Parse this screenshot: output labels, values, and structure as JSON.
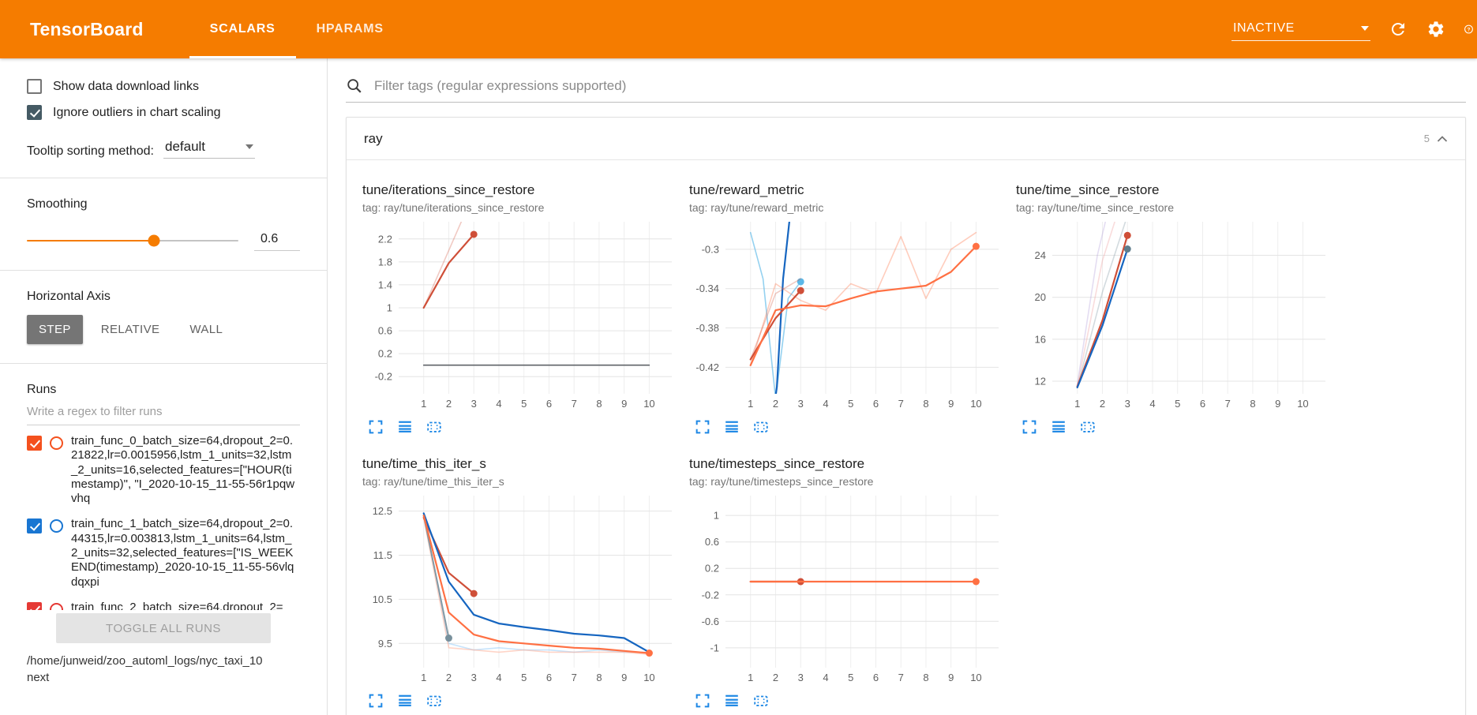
{
  "header": {
    "brand": "TensorBoard",
    "tabs": [
      {
        "label": "SCALARS",
        "active": true
      },
      {
        "label": "HPARAMS",
        "active": false
      }
    ],
    "status_select": "INACTIVE",
    "colors": {
      "bar": "#f57c00"
    }
  },
  "sidebar": {
    "checkboxes": [
      {
        "label": "Show data download links",
        "checked": false
      },
      {
        "label": "Ignore outliers in chart scaling",
        "checked": true
      }
    ],
    "tooltip_sorting": {
      "label": "Tooltip sorting method:",
      "value": "default"
    },
    "smoothing": {
      "label": "Smoothing",
      "value": "0.6",
      "percent": 60
    },
    "horizontal_axis": {
      "label": "Horizontal Axis",
      "options": [
        "STEP",
        "RELATIVE",
        "WALL"
      ],
      "selected": "STEP"
    },
    "runs": {
      "label": "Runs",
      "filter_placeholder": "Write a regex to filter runs",
      "items": [
        {
          "name": "train_func_0_batch_size=64,dropout_2=0.21822,lr=0.0015956,lstm_1_units=32,lstm_2_units=16,selected_features=[\"HOUR(timestamp)\", \"I_2020-10-15_11-55-56r1pqwvhq",
          "checked": true,
          "color": "#f4511e"
        },
        {
          "name": "train_func_1_batch_size=64,dropout_2=0.44315,lr=0.003813,lstm_1_units=64,lstm_2_units=32,selected_features=[\"IS_WEEKEND(timestamp)_2020-10-15_11-55-56vlqdqxpi",
          "checked": true,
          "color": "#1976d2"
        },
        {
          "name": "train_func_2_batch_size=64,dropout_2=",
          "checked": true,
          "color": "#e53935"
        }
      ],
      "toggle_all_label": "TOGGLE ALL RUNS",
      "log_path": "/home/junweid/zoo_automl_logs/nyc_taxi_10next"
    }
  },
  "main": {
    "filter_placeholder": "Filter tags (regular expressions supported)",
    "category": {
      "name": "ray",
      "count": "5"
    }
  },
  "chart_data": [
    {
      "type": "line",
      "title": "tune/iterations_since_restore",
      "tag": "tag: ray/tune/iterations_since_restore",
      "xlim": [
        0,
        10.9
      ],
      "ylim": [
        -0.5,
        2.5
      ],
      "xticks": [
        1,
        2,
        3,
        4,
        5,
        6,
        7,
        8,
        9,
        10
      ],
      "yticks": [
        -0.2,
        0.2,
        0.6,
        1,
        1.4,
        1.8,
        2.2
      ],
      "series": [
        {
          "name": "train_func_0 raw",
          "color": "#cf4f38",
          "opacity": 0.3,
          "width": 1.6,
          "points": [
            [
              1,
              1
            ],
            [
              2,
              2
            ],
            [
              3,
              3
            ]
          ]
        },
        {
          "name": "train_func_0",
          "color": "#cf4f38",
          "opacity": 1,
          "width": 2.2,
          "points": [
            [
              1,
              1
            ],
            [
              2,
              1.78
            ],
            [
              3,
              2.28
            ]
          ],
          "end_dot": true
        },
        {
          "name": "constant run",
          "color": "#5f6368",
          "opacity": 1,
          "width": 1.6,
          "points": [
            [
              1,
              0
            ],
            [
              10,
              0
            ]
          ]
        }
      ]
    },
    {
      "type": "line",
      "title": "tune/reward_metric",
      "tag": "tag: ray/tune/reward_metric",
      "xlim": [
        0,
        10.9
      ],
      "ylim": [
        -0.447,
        -0.272
      ],
      "xticks": [
        1,
        2,
        3,
        4,
        5,
        6,
        7,
        8,
        9,
        10
      ],
      "yticks": [
        -0.42,
        -0.38,
        -0.34,
        -0.3
      ],
      "series": [
        {
          "name": "train_func_1 raw",
          "color": "#5bb8e8",
          "opacity": 0.65,
          "width": 1.6,
          "points": [
            [
              1,
              -0.283
            ],
            [
              1.5,
              -0.33
            ],
            [
              2,
              -0.452
            ],
            [
              2.5,
              -0.35
            ],
            [
              3,
              -0.333
            ]
          ],
          "end_dot": true
        },
        {
          "name": "train_func_1",
          "color": "#1565c0",
          "opacity": 1,
          "width": 2.2,
          "points": [
            [
              1.6,
              -0.52
            ],
            [
              2.05,
              -0.44
            ],
            [
              2.3,
              -0.33
            ],
            [
              2.55,
              -0.272
            ],
            [
              2.8,
              -0.25
            ]
          ]
        },
        {
          "name": "train_func_2 raw",
          "color": "#ff7043",
          "opacity": 0.35,
          "width": 1.6,
          "points": [
            [
              1,
              -0.418
            ],
            [
              2,
              -0.335
            ],
            [
              3,
              -0.352
            ],
            [
              4,
              -0.362
            ],
            [
              5,
              -0.335
            ],
            [
              6,
              -0.345
            ],
            [
              7,
              -0.287
            ],
            [
              8,
              -0.35
            ],
            [
              9,
              -0.3
            ],
            [
              10,
              -0.283
            ]
          ]
        },
        {
          "name": "train_func_0 raw",
          "color": "#cf4f38",
          "opacity": 0.3,
          "width": 1.6,
          "points": [
            [
              1,
              -0.412
            ],
            [
              2,
              -0.345
            ],
            [
              3,
              -0.33
            ]
          ]
        },
        {
          "name": "train_func_0",
          "color": "#cf4f38",
          "opacity": 1,
          "width": 2.2,
          "points": [
            [
              1,
              -0.412
            ],
            [
              2,
              -0.37
            ],
            [
              3,
              -0.342
            ]
          ],
          "end_dot": true
        },
        {
          "name": "train_func_2",
          "color": "#ff7043",
          "opacity": 1,
          "width": 2.2,
          "points": [
            [
              1,
              -0.418
            ],
            [
              2,
              -0.362
            ],
            [
              3,
              -0.357
            ],
            [
              4,
              -0.358
            ],
            [
              5,
              -0.35
            ],
            [
              6,
              -0.343
            ],
            [
              7,
              -0.34
            ],
            [
              8,
              -0.337
            ],
            [
              9,
              -0.323
            ],
            [
              10,
              -0.297
            ]
          ],
          "end_dot": true
        }
      ]
    },
    {
      "type": "line",
      "title": "tune/time_since_restore",
      "tag": "tag: ray/tune/time_since_restore",
      "xlim": [
        0,
        10.9
      ],
      "ylim": [
        10.8,
        27.2
      ],
      "xticks": [
        1,
        2,
        3,
        4,
        5,
        6,
        7,
        8,
        9,
        10
      ],
      "yticks": [
        12,
        16,
        20,
        24
      ],
      "series": [
        {
          "name": "raw a",
          "color": "#b39ddb",
          "opacity": 0.35,
          "width": 1.6,
          "points": [
            [
              1,
              11.7
            ],
            [
              1.8,
              24
            ],
            [
              2.2,
              28
            ]
          ]
        },
        {
          "name": "raw b",
          "color": "#ef9a9a",
          "opacity": 0.35,
          "width": 1.6,
          "points": [
            [
              1,
              11.5
            ],
            [
              2,
              23.5
            ],
            [
              2.6,
              28
            ]
          ]
        },
        {
          "name": "raw c",
          "color": "#90a4ae",
          "opacity": 0.4,
          "width": 1.6,
          "points": [
            [
              1,
              11.4
            ],
            [
              2,
              20.5
            ],
            [
              3,
              27.8
            ]
          ]
        },
        {
          "name": "train_func_0",
          "color": "#cf4f38",
          "opacity": 1,
          "width": 2.2,
          "points": [
            [
              1,
              11.5
            ],
            [
              2,
              17.8
            ],
            [
              3,
              25.9
            ]
          ],
          "end_dot": true
        },
        {
          "name": "train_func_1",
          "color": "#1565c0",
          "opacity": 1,
          "width": 2.2,
          "points": [
            [
              1,
              11.4
            ],
            [
              2,
              17.3
            ],
            [
              3,
              24.6
            ]
          ],
          "end_dot": true,
          "dot_color": "#5f7d8c"
        }
      ]
    },
    {
      "type": "line",
      "title": "tune/time_this_iter_s",
      "tag": "tag: ray/tune/time_this_iter_s",
      "xlim": [
        0,
        10.9
      ],
      "ylim": [
        8.95,
        12.85
      ],
      "xticks": [
        1,
        2,
        3,
        4,
        5,
        6,
        7,
        8,
        9,
        10
      ],
      "yticks": [
        9.5,
        10.5,
        11.5,
        12.5
      ],
      "series": [
        {
          "name": "train_func_1 raw",
          "color": "#90caf9",
          "opacity": 0.5,
          "width": 1.6,
          "points": [
            [
              1,
              12.45
            ],
            [
              2,
              9.5
            ],
            [
              3,
              9.35
            ],
            [
              4,
              9.4
            ],
            [
              5,
              9.35
            ],
            [
              6,
              9.35
            ],
            [
              7,
              9.3
            ],
            [
              8,
              9.35
            ],
            [
              9,
              9.3
            ],
            [
              10,
              9.3
            ]
          ]
        },
        {
          "name": "train_func_2 raw",
          "color": "#ffab91",
          "opacity": 0.5,
          "width": 1.6,
          "points": [
            [
              1,
              12.35
            ],
            [
              2,
              9.4
            ],
            [
              3,
              9.35
            ],
            [
              4,
              9.3
            ],
            [
              5,
              9.35
            ],
            [
              6,
              9.3
            ],
            [
              7,
              9.3
            ],
            [
              8,
              9.3
            ],
            [
              9,
              9.3
            ],
            [
              10,
              9.25
            ]
          ]
        },
        {
          "name": "short run",
          "color": "#78909c",
          "opacity": 0.9,
          "width": 2,
          "points": [
            [
              1,
              12.4
            ],
            [
              2,
              9.62
            ]
          ],
          "end_dot": true
        },
        {
          "name": "train_func_0",
          "color": "#cf4f38",
          "opacity": 1,
          "width": 2.2,
          "points": [
            [
              1,
              12.35
            ],
            [
              2,
              11.1
            ],
            [
              3,
              10.63
            ]
          ],
          "end_dot": true
        },
        {
          "name": "train_func_1",
          "color": "#1565c0",
          "opacity": 1,
          "width": 2.2,
          "points": [
            [
              1,
              12.45
            ],
            [
              2,
              10.9
            ],
            [
              3,
              10.15
            ],
            [
              4,
              9.95
            ],
            [
              5,
              9.87
            ],
            [
              6,
              9.8
            ],
            [
              7,
              9.72
            ],
            [
              8,
              9.68
            ],
            [
              9,
              9.62
            ],
            [
              10,
              9.3
            ]
          ]
        },
        {
          "name": "train_func_2",
          "color": "#ff7043",
          "opacity": 1,
          "width": 2.2,
          "points": [
            [
              1,
              12.4
            ],
            [
              2,
              10.2
            ],
            [
              3,
              9.7
            ],
            [
              4,
              9.55
            ],
            [
              5,
              9.5
            ],
            [
              6,
              9.45
            ],
            [
              7,
              9.4
            ],
            [
              8,
              9.38
            ],
            [
              9,
              9.33
            ],
            [
              10,
              9.28
            ]
          ],
          "end_dot": true
        }
      ]
    },
    {
      "type": "line",
      "title": "tune/timesteps_since_restore",
      "tag": "tag: ray/tune/timesteps_since_restore",
      "xlim": [
        0,
        10.9
      ],
      "ylim": [
        -1.3,
        1.3
      ],
      "xticks": [
        1,
        2,
        3,
        4,
        5,
        6,
        7,
        8,
        9,
        10
      ],
      "yticks": [
        -1,
        -0.6,
        -0.2,
        0.2,
        0.6,
        1
      ],
      "series": [
        {
          "name": "constant run",
          "color": "#5f6368",
          "opacity": 1,
          "width": 1.6,
          "points": [
            [
              1,
              0
            ],
            [
              10,
              0
            ]
          ]
        },
        {
          "name": "train_func_0",
          "color": "#cf4f38",
          "opacity": 1,
          "width": 2.2,
          "points": [
            [
              1,
              0
            ],
            [
              3,
              0
            ]
          ],
          "end_dot": true
        },
        {
          "name": "train_func_2",
          "color": "#ff7043",
          "opacity": 1,
          "width": 2.2,
          "points": [
            [
              1,
              0
            ],
            [
              10,
              0
            ]
          ],
          "end_dot": true
        }
      ]
    }
  ]
}
